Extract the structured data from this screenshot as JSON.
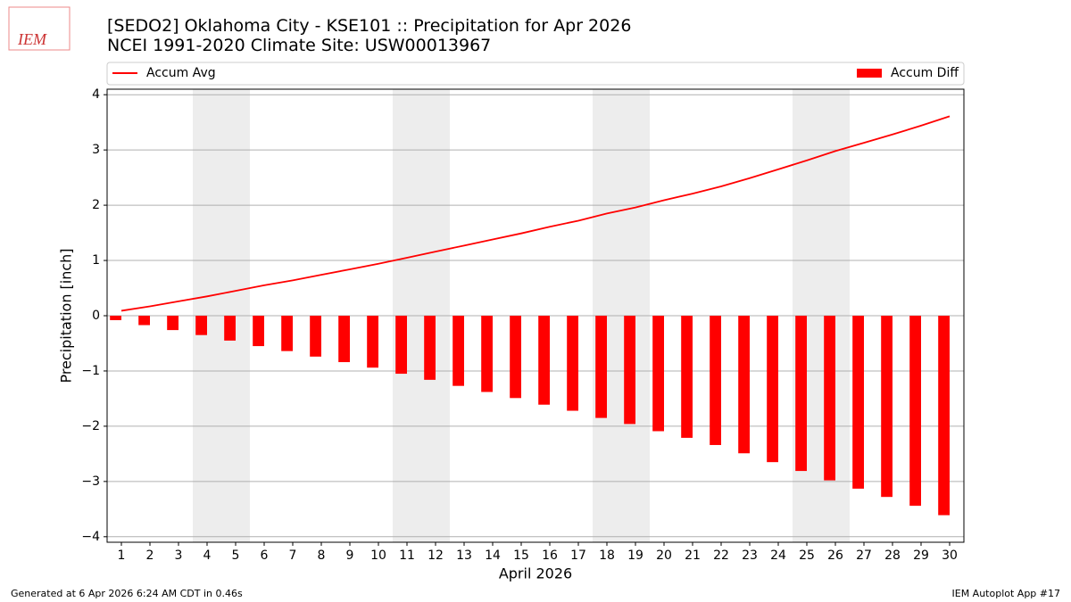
{
  "chart_data": {
    "type": "bar",
    "title": "[SEDO2] Oklahoma City - KSE101 :: Precipitation for Apr 2026",
    "subtitle": "NCEI 1991-2020 Climate Site: USW00013967",
    "xlabel": "April 2026",
    "ylabel": "Precipitation [inch]",
    "x": [
      1,
      2,
      3,
      4,
      5,
      6,
      7,
      8,
      9,
      10,
      11,
      12,
      13,
      14,
      15,
      16,
      17,
      18,
      19,
      20,
      21,
      22,
      23,
      24,
      25,
      26,
      27,
      28,
      29,
      30
    ],
    "xlim": [
      0.5,
      30.5
    ],
    "ylim": [
      -4.1,
      4.1
    ],
    "yticks": [
      {
        "value": -4,
        "label": "−4"
      },
      {
        "value": -3,
        "label": "−3"
      },
      {
        "value": -2,
        "label": "−2"
      },
      {
        "value": -1,
        "label": "−1"
      },
      0,
      1,
      2,
      3,
      4
    ],
    "grid": true,
    "shaded_days": [
      4,
      5,
      11,
      12,
      18,
      19,
      25,
      26
    ],
    "series": [
      {
        "name": "Accum Avg",
        "type": "line",
        "color": "#ff0000",
        "values": [
          0.09,
          0.17,
          0.26,
          0.35,
          0.45,
          0.55,
          0.64,
          0.74,
          0.84,
          0.94,
          1.05,
          1.16,
          1.27,
          1.38,
          1.49,
          1.61,
          1.72,
          1.85,
          1.96,
          2.09,
          2.21,
          2.34,
          2.49,
          2.65,
          2.81,
          2.98,
          3.13,
          3.28,
          3.44,
          3.61
        ]
      },
      {
        "name": "Accum Diff",
        "type": "bar",
        "color": "#ff0000",
        "values": [
          -0.08,
          -0.17,
          -0.26,
          -0.35,
          -0.45,
          -0.55,
          -0.64,
          -0.74,
          -0.84,
          -0.94,
          -1.05,
          -1.16,
          -1.27,
          -1.38,
          -1.49,
          -1.61,
          -1.72,
          -1.85,
          -1.96,
          -2.09,
          -2.21,
          -2.34,
          -2.49,
          -2.65,
          -2.81,
          -2.98,
          -3.13,
          -3.28,
          -3.44,
          -3.61
        ]
      }
    ]
  },
  "logo": "IEM",
  "footer_left": "Generated at 6 Apr 2026 6:24 AM CDT in 0.46s",
  "footer_right": "IEM Autoplot App #17"
}
